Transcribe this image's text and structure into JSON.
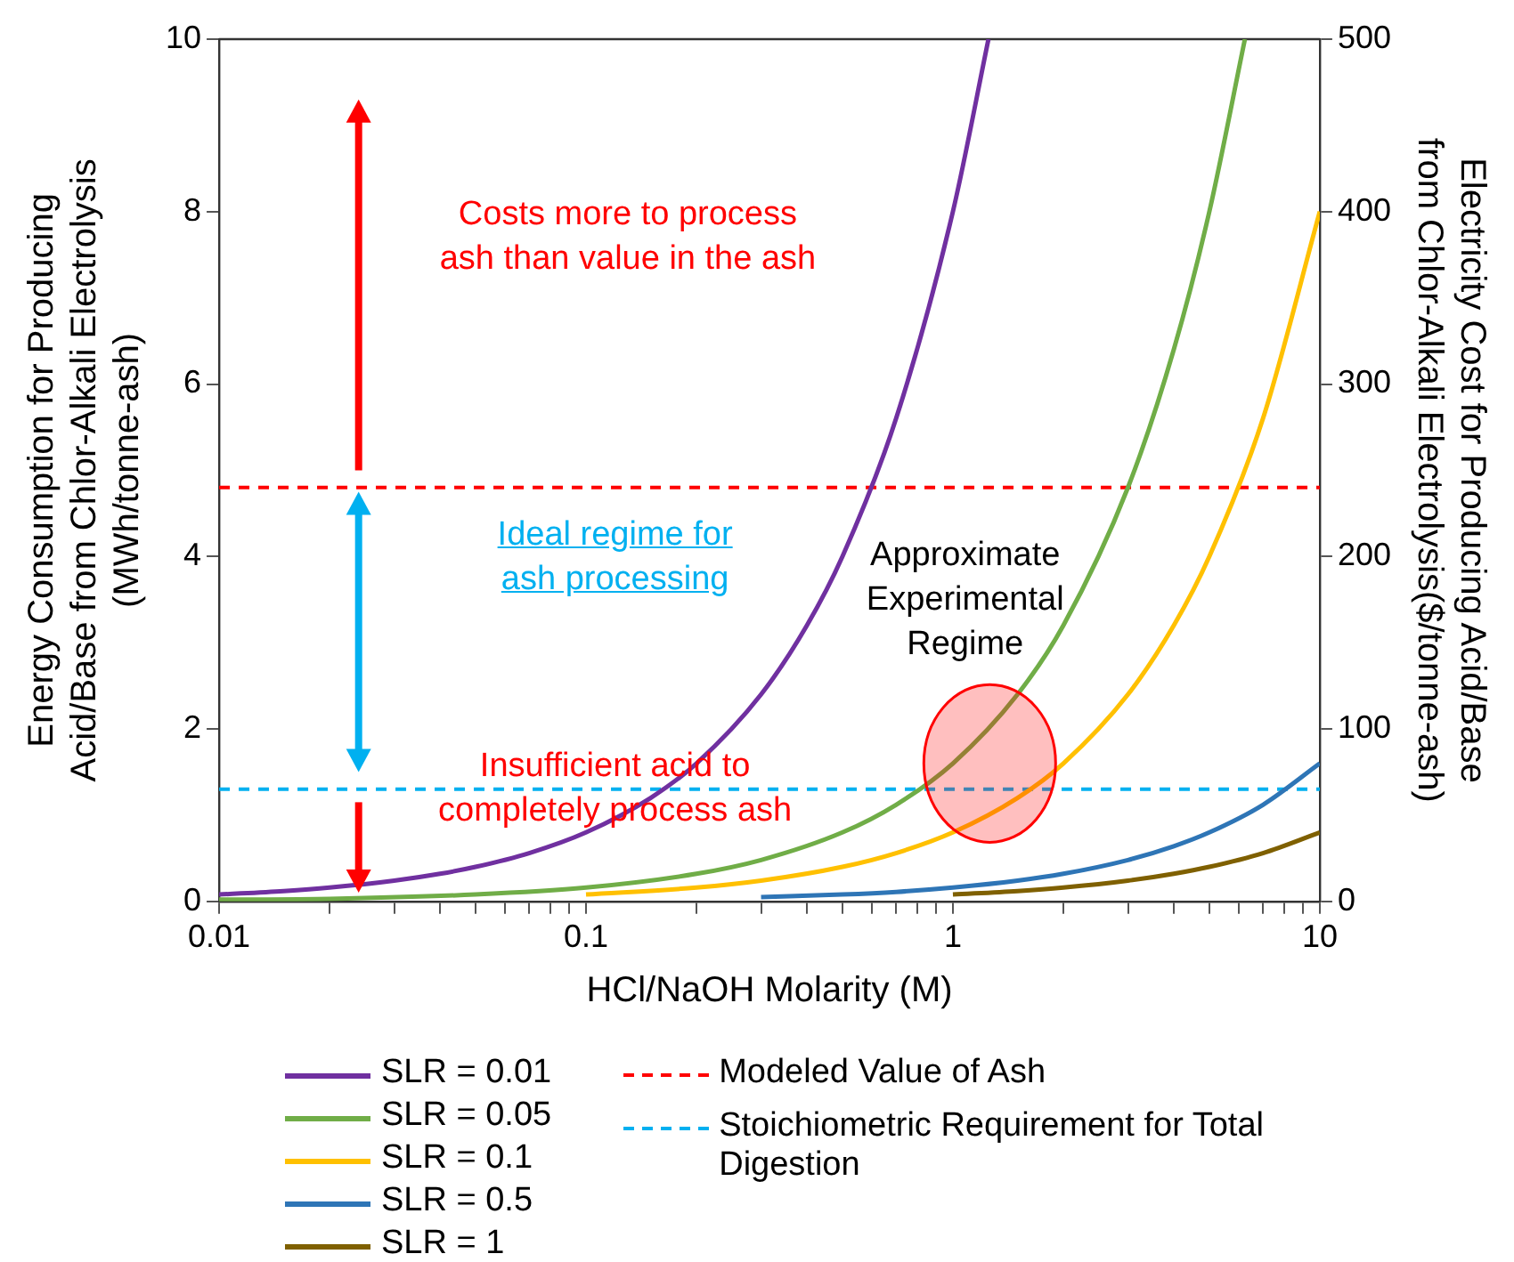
{
  "chart_data": {
    "type": "line",
    "xlabel": "HCl/NaOH Molarity (M)",
    "ylabel": "Energy Consumption for Producing\nAcid/Base from Chlor-Alkali Electrolysis\n(MWh/tonne-ash)",
    "y2label": "Electricity Cost for Producing Acid/Base\nfrom Chlor-Alkali Electrolysis($/tonne-ash)",
    "log": "x",
    "xlim": [
      0.01,
      10
    ],
    "ylim": [
      0,
      10
    ],
    "y2lim": [
      0,
      500
    ],
    "xticks": [
      0.01,
      {
        "value": 0.02,
        "label": null
      },
      {
        "value": 0.03,
        "label": null
      },
      {
        "value": 0.04,
        "label": null
      },
      {
        "value": 0.05,
        "label": null
      },
      {
        "value": 0.06,
        "label": null
      },
      {
        "value": 0.07,
        "label": null
      },
      {
        "value": 0.08,
        "label": null
      },
      {
        "value": 0.09,
        "label": null
      },
      0.1,
      {
        "value": 0.2,
        "label": null
      },
      {
        "value": 0.3,
        "label": null
      },
      {
        "value": 0.4,
        "label": null
      },
      {
        "value": 0.5,
        "label": null
      },
      {
        "value": 0.6,
        "label": null
      },
      {
        "value": 0.7,
        "label": null
      },
      {
        "value": 0.8,
        "label": null
      },
      {
        "value": 0.9,
        "label": null
      },
      1,
      {
        "value": 2,
        "label": null
      },
      {
        "value": 3,
        "label": null
      },
      {
        "value": 4,
        "label": null
      },
      {
        "value": 5,
        "label": null
      },
      {
        "value": 6,
        "label": null
      },
      {
        "value": 7,
        "label": null
      },
      {
        "value": 8,
        "label": null
      },
      {
        "value": 9,
        "label": null
      },
      10
    ],
    "yticks": [
      0,
      2,
      4,
      6,
      8,
      10
    ],
    "y2ticks": [
      0,
      100,
      200,
      300,
      400,
      500
    ],
    "grid": false,
    "legend": "bottom",
    "marker": "none",
    "line_style": "solid",
    "series": [
      {
        "name": "SLR = 0.01",
        "color": "#7030a0",
        "x": [
          0.01,
          0.015,
          0.02,
          0.03,
          0.04,
          0.05,
          0.07,
          0.1,
          0.15,
          0.2,
          0.3,
          0.4,
          0.5,
          0.7,
          1,
          1.25
        ],
        "values": [
          0.08,
          0.12,
          0.16,
          0.24,
          0.32,
          0.4,
          0.56,
          0.8,
          1.2,
          1.6,
          2.4,
          3.2,
          4,
          5.6,
          8,
          10
        ]
      },
      {
        "name": "SLR = 0.05",
        "color": "#70ad47",
        "x": [
          0.01,
          0.02,
          0.05,
          0.1,
          0.2,
          0.3,
          0.5,
          0.7,
          1,
          1.5,
          2,
          3,
          4,
          5,
          6.25
        ],
        "values": [
          0.02,
          0.03,
          0.08,
          0.16,
          0.32,
          0.48,
          0.8,
          1.12,
          1.6,
          2.4,
          3.2,
          4.8,
          6.4,
          8,
          10
        ]
      },
      {
        "name": "SLR = 0.1",
        "color": "#ffc000",
        "x": [
          0.1,
          0.2,
          0.3,
          0.5,
          0.7,
          1,
          1.5,
          2,
          3,
          4,
          5,
          7,
          10
        ],
        "values": [
          0.08,
          0.16,
          0.24,
          0.4,
          0.56,
          0.8,
          1.2,
          1.6,
          2.4,
          3.2,
          4,
          5.6,
          8
        ]
      },
      {
        "name": "SLR = 0.5",
        "color": "#2e75b6",
        "x": [
          0.3,
          0.5,
          0.7,
          1,
          1.5,
          2,
          3,
          4,
          5,
          7,
          10
        ],
        "values": [
          0.05,
          0.08,
          0.11,
          0.16,
          0.24,
          0.32,
          0.48,
          0.64,
          0.8,
          1.12,
          1.6
        ]
      },
      {
        "name": "SLR = 1",
        "color": "#7f6000",
        "x": [
          1,
          1.5,
          2,
          3,
          4,
          5,
          7,
          10
        ],
        "values": [
          0.08,
          0.12,
          0.16,
          0.24,
          0.32,
          0.4,
          0.56,
          0.8
        ]
      }
    ],
    "ref_lines": [
      {
        "axis": "y",
        "value": 4.8,
        "label": "Modeled Value of Ash",
        "color": "#ff0000",
        "line_style": "dashed"
      },
      {
        "axis": "y",
        "value": 1.3,
        "label": "Stoichiometric Requirement for Total Digestion",
        "color": "#00b0f0",
        "line_style": "dashed"
      }
    ],
    "annotations": [
      "Costs more to process\nash than value in the ash",
      "Ideal regime for\nash processing",
      "Insufficient acid to\ncompletely process ash",
      "Approximate\nExperimental\nRegime"
    ]
  }
}
